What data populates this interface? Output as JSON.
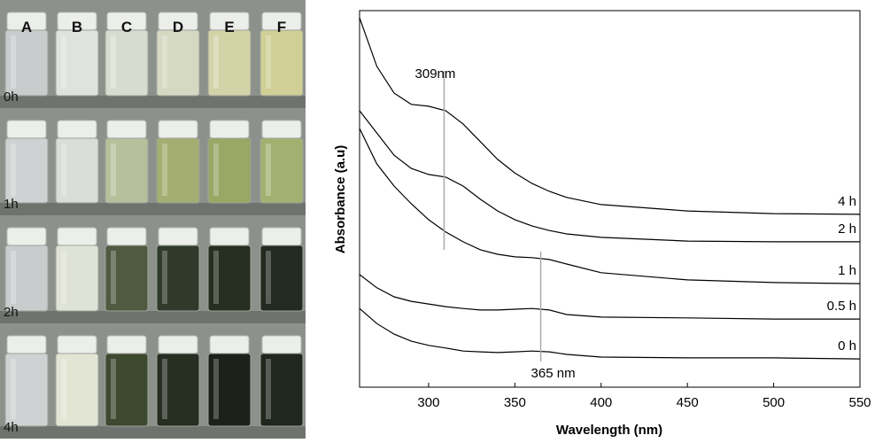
{
  "photo": {
    "columns": [
      "A",
      "B",
      "C",
      "D",
      "E",
      "F"
    ],
    "rows": [
      "0h",
      "1h",
      "2h",
      "4h"
    ]
  },
  "chart_data": {
    "type": "line",
    "x_label": "Wavelength (nm)",
    "y_label": "Absorbance (a.u)",
    "xlim": [
      260,
      550
    ],
    "ylim": [
      0,
      100
    ],
    "xticks": [
      300,
      350,
      400,
      450,
      500,
      550
    ],
    "x": [
      260,
      270,
      280,
      290,
      300,
      310,
      320,
      330,
      340,
      350,
      360,
      370,
      380,
      400,
      450,
      500,
      550
    ],
    "series": [
      {
        "name": "4 h",
        "color": "#000000",
        "values": [
          98.1,
          85.2,
          78.1,
          75.1,
          74.6,
          73.4,
          69.9,
          65.2,
          60.5,
          56.9,
          54.1,
          52.0,
          50.4,
          48.5,
          46.8,
          46.1,
          45.9
        ]
      },
      {
        "name": "2 h",
        "color": "#000000",
        "values": [
          73.4,
          67.5,
          61.6,
          58.1,
          56.5,
          55.8,
          53.4,
          49.9,
          46.8,
          44.5,
          42.8,
          41.6,
          40.7,
          39.8,
          38.8,
          38.6,
          38.6
        ]
      },
      {
        "name": "1 h",
        "color": "#000000",
        "values": [
          68.7,
          59.3,
          53.4,
          48.7,
          44.5,
          41.2,
          38.6,
          36.5,
          35.3,
          34.6,
          34.4,
          33.9,
          32.7,
          30.4,
          28.5,
          27.8,
          27.5
        ]
      },
      {
        "name": "0.5 h",
        "color": "#000000",
        "values": [
          29.9,
          26.4,
          24.0,
          22.8,
          22.1,
          21.4,
          20.9,
          20.5,
          20.5,
          20.7,
          20.9,
          20.5,
          19.3,
          18.6,
          18.4,
          18.1,
          18.1
        ]
      },
      {
        "name": "0 h",
        "color": "#000000",
        "values": [
          20.9,
          16.9,
          14.1,
          12.2,
          11.1,
          10.4,
          9.6,
          9.4,
          9.2,
          9.4,
          9.6,
          9.4,
          8.7,
          8.0,
          7.8,
          7.8,
          7.5
        ]
      }
    ],
    "annotations": [
      {
        "text": "309nm",
        "x": 309
      },
      {
        "text": "365 nm",
        "x": 365
      }
    ]
  }
}
